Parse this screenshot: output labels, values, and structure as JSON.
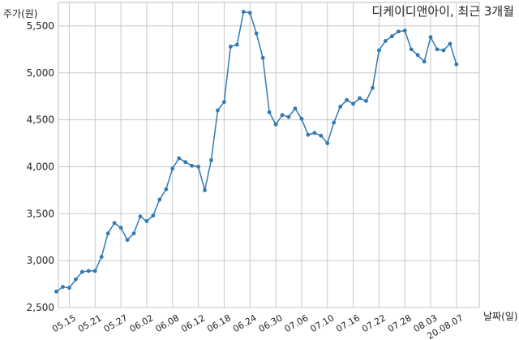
{
  "chart_data": {
    "type": "line",
    "title": "디케이디앤아이, 최근 3개월",
    "ylabel": "주가(원)",
    "xlabel": "날짜(일)",
    "ylim": [
      2500,
      5750
    ],
    "y_ticks": [
      2500,
      3000,
      3500,
      4000,
      4500,
      5000,
      5500
    ],
    "y_tick_labels": [
      "2,500",
      "3,000",
      "3,500",
      "4,000",
      "4,500",
      "5,000",
      "5,500"
    ],
    "x_tick_labels": [
      "05.15",
      "05.21",
      "05.27",
      "06.02",
      "06.08",
      "06.12",
      "06.18",
      "06.24",
      "06.30",
      "07.06",
      "07.10",
      "07.16",
      "07.22",
      "07.28",
      "08.03",
      "20.08.07"
    ],
    "x_tick_indices": [
      2,
      6,
      10,
      14,
      18,
      22,
      26,
      30,
      34,
      38,
      42,
      46,
      50,
      54,
      58,
      62
    ],
    "grid": true,
    "line_color": "#2f7ab5",
    "series": [
      {
        "values": [
          2670,
          2720,
          2710,
          2800,
          2880,
          2890,
          2890,
          3040,
          3290,
          3400,
          3350,
          3220,
          3290,
          3470,
          3420,
          3480,
          3650,
          3760,
          3980,
          4090,
          4050,
          4010,
          4000,
          3750,
          4070,
          4600,
          4690,
          5280,
          5300,
          5650,
          5640,
          5420,
          5160,
          4580,
          4450,
          4550,
          4530,
          4620,
          4510,
          4340,
          4360,
          4330,
          4250,
          4470,
          4640,
          4710,
          4670,
          4730,
          4700,
          4840,
          5240,
          5340,
          5390,
          5440,
          5450,
          5250,
          5190,
          5120,
          5380,
          5250,
          5240,
          5310,
          5090
        ]
      }
    ]
  }
}
